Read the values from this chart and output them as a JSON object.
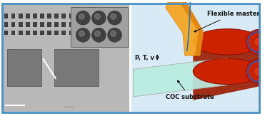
{
  "border_color": "#4a90c4",
  "border_linewidth": 2.0,
  "background_color": "#ffffff",
  "label_flexible": "Flexible master",
  "label_coc": "COC substrate",
  "label_ptv": "P, T, v",
  "roller_color": "#cc2200",
  "roller_dark": "#8b1500",
  "sheet_color_light": "#f5a623",
  "sheet_color_dark": "#e08010",
  "substrate_color": "#b8ede0",
  "substrate_edge": "#aaaaaa",
  "blue_curve": "#2277bb",
  "blue_arrow": "#2255cc",
  "text_color": "#111111",
  "font_size": 6.0,
  "right_bg": "#d8eaf5",
  "left_bg": "#c0c0c0",
  "sem_main_bg": "#b8b8b8",
  "sem_dark": "#606060",
  "inset_bg": "#a0a0a0",
  "hole_color": "#404040",
  "chan_color": "#787878"
}
